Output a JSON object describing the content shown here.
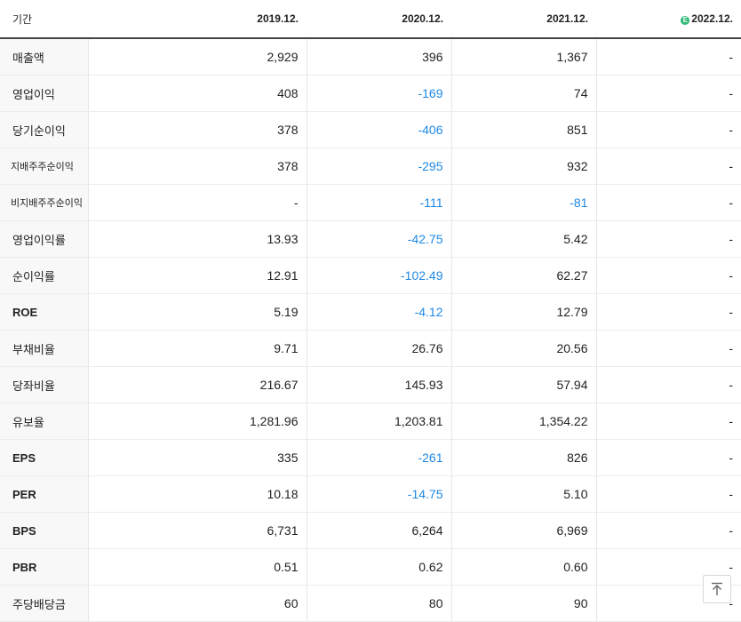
{
  "header": {
    "period_label": "기간",
    "columns": [
      "2019.12.",
      "2020.12.",
      "2021.12.",
      "2022.12."
    ],
    "estimate_badge": "E"
  },
  "rows": [
    {
      "label": "매출액",
      "values": [
        "2,929",
        "396",
        "1,367",
        "-"
      ]
    },
    {
      "label": "영업이익",
      "values": [
        "408",
        "-169",
        "74",
        "-"
      ]
    },
    {
      "label": "당기순이익",
      "values": [
        "378",
        "-406",
        "851",
        "-"
      ]
    },
    {
      "label": "지배주주순이익",
      "values": [
        "378",
        "-295",
        "932",
        "-"
      ]
    },
    {
      "label": "비지배주주순이익",
      "values": [
        "-",
        "-111",
        "-81",
        "-"
      ]
    },
    {
      "label": "영업이익률",
      "values": [
        "13.93",
        "-42.75",
        "5.42",
        "-"
      ]
    },
    {
      "label": "순이익률",
      "values": [
        "12.91",
        "-102.49",
        "62.27",
        "-"
      ]
    },
    {
      "label": "ROE",
      "values": [
        "5.19",
        "-4.12",
        "12.79",
        "-"
      ]
    },
    {
      "label": "부채비율",
      "values": [
        "9.71",
        "26.76",
        "20.56",
        "-"
      ]
    },
    {
      "label": "당좌비율",
      "values": [
        "216.67",
        "145.93",
        "57.94",
        "-"
      ]
    },
    {
      "label": "유보율",
      "values": [
        "1,281.96",
        "1,203.81",
        "1,354.22",
        "-"
      ]
    },
    {
      "label": "EPS",
      "values": [
        "335",
        "-261",
        "826",
        "-"
      ]
    },
    {
      "label": "PER",
      "values": [
        "10.18",
        "-14.75",
        "5.10",
        "-"
      ]
    },
    {
      "label": "BPS",
      "values": [
        "6,731",
        "6,264",
        "6,969",
        "-"
      ]
    },
    {
      "label": "PBR",
      "values": [
        "0.51",
        "0.62",
        "0.60",
        "-"
      ]
    },
    {
      "label": "주당배당금",
      "values": [
        "60",
        "80",
        "90",
        "-"
      ]
    }
  ],
  "colors": {
    "negative": "#1e88e5",
    "estimate_badge": "#2bb673"
  },
  "scroll_top_icon": "arrow-up-to-top-icon"
}
